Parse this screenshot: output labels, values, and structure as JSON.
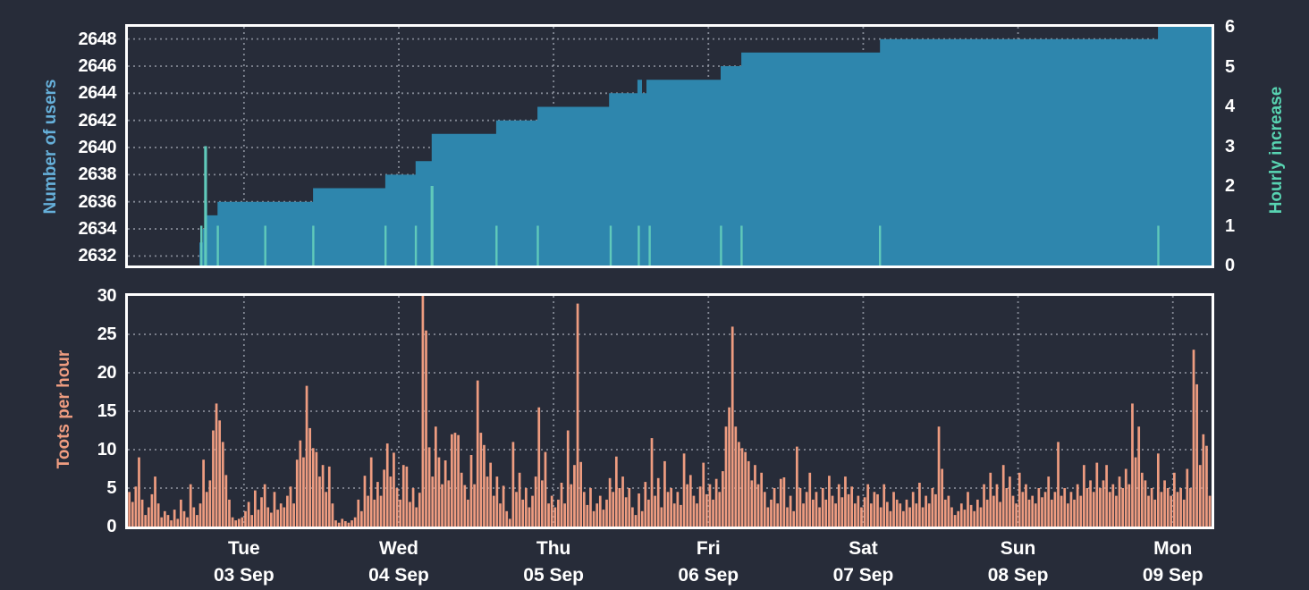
{
  "colors": {
    "background": "#272c39",
    "border": "#ffffff",
    "grid": "#9aa0ab",
    "tick_text": "#ffffff",
    "users_fill": "#2e86ad",
    "users_label": "#66b0da",
    "increase_fill": "#60c9ba",
    "increase_label": "#58d4b2",
    "toots_fill": "#ee9c80",
    "toots_label": "#ee9c80"
  },
  "x_axis": {
    "total_hours": 168,
    "noon_hours": [
      18,
      42,
      66,
      90,
      114,
      138,
      162
    ],
    "day_labels": [
      {
        "weekday": "Tue",
        "date": "03 Sep"
      },
      {
        "weekday": "Wed",
        "date": "04 Sep"
      },
      {
        "weekday": "Thu",
        "date": "05 Sep"
      },
      {
        "weekday": "Fri",
        "date": "06 Sep"
      },
      {
        "weekday": "Sat",
        "date": "07 Sep"
      },
      {
        "weekday": "Sun",
        "date": "08 Sep"
      },
      {
        "weekday": "Mon",
        "date": "09 Sep"
      }
    ]
  },
  "chart_data": [
    {
      "id": "users",
      "type": "area",
      "title": "Number of users with hourly increase",
      "left_axis": {
        "label": "Number of users",
        "ticks": [
          2632,
          2634,
          2636,
          2638,
          2640,
          2642,
          2644,
          2646,
          2648
        ],
        "range": [
          2631.3,
          2648.9
        ]
      },
      "right_axis": {
        "label": "Hourly increase",
        "ticks": [
          0,
          1,
          2,
          3,
          4,
          5,
          6
        ],
        "range": [
          0,
          6
        ]
      },
      "users_steps": [
        [
          11.1,
          2633
        ],
        [
          11.6,
          2634
        ],
        [
          12.0,
          2636
        ],
        [
          12.3,
          2635
        ],
        [
          13.9,
          2636
        ],
        [
          28.7,
          2637
        ],
        [
          39.9,
          2638
        ],
        [
          44.6,
          2639
        ],
        [
          47.1,
          2641
        ],
        [
          57.1,
          2642
        ],
        [
          63.5,
          2643
        ],
        [
          74.6,
          2644
        ],
        [
          79.0,
          2645
        ],
        [
          79.7,
          2644
        ],
        [
          80.4,
          2645
        ],
        [
          91.9,
          2646
        ],
        [
          95.1,
          2647
        ],
        [
          116.6,
          2648
        ],
        [
          159.7,
          2649
        ]
      ],
      "series_end_hour": 168,
      "increase_spikes": [
        [
          11.4,
          1
        ],
        [
          12.05,
          3
        ],
        [
          13.95,
          1
        ],
        [
          21.3,
          1
        ],
        [
          28.75,
          1
        ],
        [
          39.95,
          1
        ],
        [
          44.65,
          1
        ],
        [
          47.15,
          2
        ],
        [
          57.15,
          1
        ],
        [
          63.55,
          1
        ],
        [
          74.85,
          1
        ],
        [
          79.2,
          1
        ],
        [
          80.9,
          1
        ],
        [
          91.95,
          1
        ],
        [
          95.15,
          1
        ],
        [
          116.6,
          1
        ],
        [
          159.75,
          1
        ]
      ]
    },
    {
      "id": "toots",
      "type": "bar",
      "title": "Toots per hour",
      "left_axis": {
        "label": "Toots per hour",
        "ticks": [
          0,
          5,
          10,
          15,
          20,
          25,
          30
        ],
        "range": [
          0,
          30
        ]
      },
      "interval_hours": 0.5,
      "values": [
        4.5,
        3.2,
        5.2,
        9,
        3.5,
        1.5,
        2.5,
        4.2,
        6.5,
        3.0,
        1.2,
        2.0,
        1.5,
        0.8,
        2.2,
        1.0,
        3.5,
        2.0,
        1.2,
        5.5,
        2.5,
        1.5,
        3.0,
        8.7,
        4.5,
        6.0,
        12.5,
        16,
        13.8,
        11,
        6.7,
        3.5,
        1.2,
        0.8,
        1.0,
        1.2,
        2.0,
        3.2,
        1.5,
        4.7,
        2.2,
        3.8,
        5.5,
        2.5,
        1.8,
        4.5,
        2.2,
        3.0,
        2.5,
        4.0,
        5.2,
        3.0,
        8.7,
        11.2,
        9.0,
        18.3,
        12.8,
        10.2,
        9.7,
        6.5,
        8.0,
        4.5,
        7.8,
        3.0,
        0.8,
        0.5,
        1.0,
        0.7,
        0.5,
        0.8,
        1.2,
        3.5,
        2.0,
        6.6,
        4.0,
        9.0,
        3.5,
        5.8,
        4.0,
        7.4,
        10.8,
        6.5,
        9.6,
        5.0,
        3.5,
        8.0,
        7.8,
        3.2,
        5.0,
        2.5,
        4.4,
        30,
        25.5,
        10.3,
        6.5,
        13,
        9.0,
        5.5,
        8.6,
        6.0,
        12,
        12.2,
        11.9,
        7.0,
        5.4,
        3.5,
        9.3,
        5.5,
        19,
        12.2,
        10.6,
        6.5,
        8.3,
        4.0,
        6.5,
        3.0,
        5.3,
        2.0,
        1.0,
        11,
        4.5,
        7.0,
        3.5,
        5.0,
        2.5,
        4.0,
        6.5,
        15.5,
        6.0,
        9.7,
        3.0,
        4.0,
        2.5,
        3.5,
        5.7,
        3.0,
        12.5,
        5.5,
        8.0,
        29,
        8.4,
        4.5,
        2.8,
        5.0,
        2.0,
        3.0,
        4.0,
        2.2,
        3.5,
        6.3,
        4.5,
        9.1,
        5.0,
        6.5,
        3.8,
        5.0,
        2.5,
        1.5,
        4.3,
        2.0,
        5.8,
        3.5,
        11.5,
        4.0,
        6.3,
        2.5,
        8.5,
        4.5,
        5.0,
        3.0,
        4.5,
        2.8,
        9.5,
        5.5,
        6.7,
        4.0,
        3.0,
        5.2,
        8.3,
        4.2,
        5.5,
        3.5,
        6.2,
        4.5,
        7.2,
        13,
        15.5,
        26,
        13,
        11,
        10.2,
        9.7,
        8.5,
        6.0,
        8.0,
        5.5,
        7.0,
        4.5,
        2.5,
        3.5,
        5.0,
        3.0,
        6.2,
        6.4,
        2.5,
        4.0,
        2.0,
        10.4,
        5.0,
        3.0,
        4.5,
        7.0,
        3.5,
        4.5,
        2.5,
        5.0,
        3.5,
        6.6,
        4.0,
        3.0,
        5.5,
        3.8,
        6.5,
        4.2,
        5.2,
        3.0,
        4.0,
        2.5,
        3.8,
        5.5,
        3.0,
        4.5,
        4.2,
        2.5,
        5.5,
        3.2,
        2.0,
        4.5,
        3.5,
        3.0,
        2.0,
        3.5,
        2.5,
        4.5,
        3.0,
        5.7,
        2.5,
        4.0,
        3.0,
        5.0,
        4.2,
        13,
        7.5,
        3.5,
        4.0,
        2.5,
        1.5,
        2.0,
        3.0,
        2.2,
        4.5,
        2.8,
        2.0,
        3.5,
        2.5,
        5.5,
        3.5,
        7.0,
        4.0,
        5.5,
        3.2,
        8.0,
        5.0,
        6.5,
        4.0,
        3.0,
        7.0,
        4.5,
        5.5,
        3.5,
        4.0,
        3.0,
        5.0,
        3.8,
        4.5,
        6.5,
        3.5,
        4.5,
        11,
        4.0,
        5.0,
        3.0,
        4.5,
        3.5,
        5.5,
        4.0,
        8.0,
        5.0,
        6.0,
        4.5,
        8.3,
        5.0,
        6.0,
        8.0,
        4.5,
        5.5,
        4.0,
        6.5,
        5.0,
        7.5,
        5.5,
        16,
        9.0,
        13,
        7.0,
        6.0,
        4.0,
        5.0,
        3.5,
        9.5,
        4.5,
        6.0,
        5.0,
        4.0,
        7.0,
        4.5,
        5.0,
        3.5,
        7.5,
        5.0,
        23,
        18.5,
        8.0,
        12,
        10.5,
        4.0
      ]
    }
  ]
}
